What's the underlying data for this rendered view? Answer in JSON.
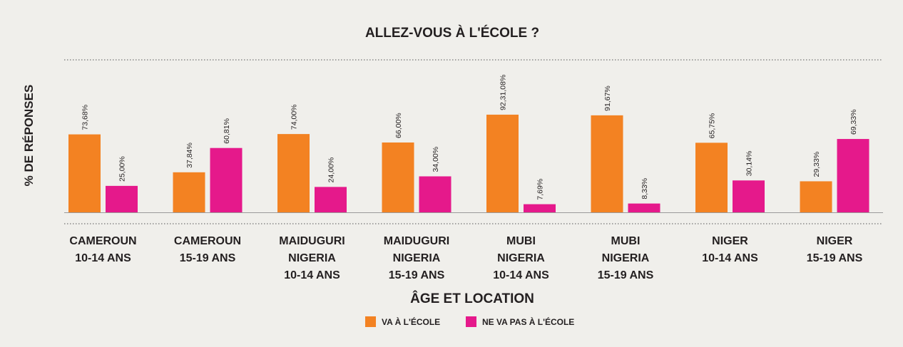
{
  "chart_data": {
    "type": "bar",
    "title": "ALLEZ-VOUS À L'ÉCOLE ?",
    "xlabel": "ÂGE ET LOCATION",
    "ylabel": "% DE RÉPONSES",
    "ylim": [
      0,
      100
    ],
    "grid": false,
    "legend_position": "bottom",
    "categories": [
      [
        "CAMEROUN",
        "10-14 ANS"
      ],
      [
        "CAMEROUN",
        "15-19 ANS"
      ],
      [
        "MAIDUGURI",
        "NIGERIA",
        "10-14 ANS"
      ],
      [
        "MAIDUGURI",
        "NIGERIA",
        "15-19 ANS"
      ],
      [
        "MUBI",
        "NIGERIA",
        "10-14 ANS"
      ],
      [
        "MUBI",
        "NIGERIA",
        "15-19 ANS"
      ],
      [
        "NIGER",
        "10-14 ANS"
      ],
      [
        "NIGER",
        "15-19 ANS"
      ]
    ],
    "series": [
      {
        "name": "VA À L'ÉCOLE",
        "color": "#f38222",
        "values": [
          73.68,
          37.84,
          74.0,
          66.0,
          92.31,
          91.67,
          65.75,
          29.33
        ],
        "labels": [
          "73,68%",
          "37,84%",
          "74,00%",
          "66,00%",
          "92,31,08%",
          "91,67%",
          "65,75%",
          "29,33%"
        ]
      },
      {
        "name": "NE VA PAS À L'ÉCOLE",
        "color": "#e5198b",
        "values": [
          25.0,
          60.81,
          24.0,
          34.0,
          7.69,
          8.33,
          30.14,
          69.33
        ],
        "labels": [
          "25,00%",
          "60,81%",
          "24,00%",
          "34,00%",
          "7,69%",
          "8,33%",
          "30,14%",
          "69,33%"
        ]
      }
    ]
  }
}
